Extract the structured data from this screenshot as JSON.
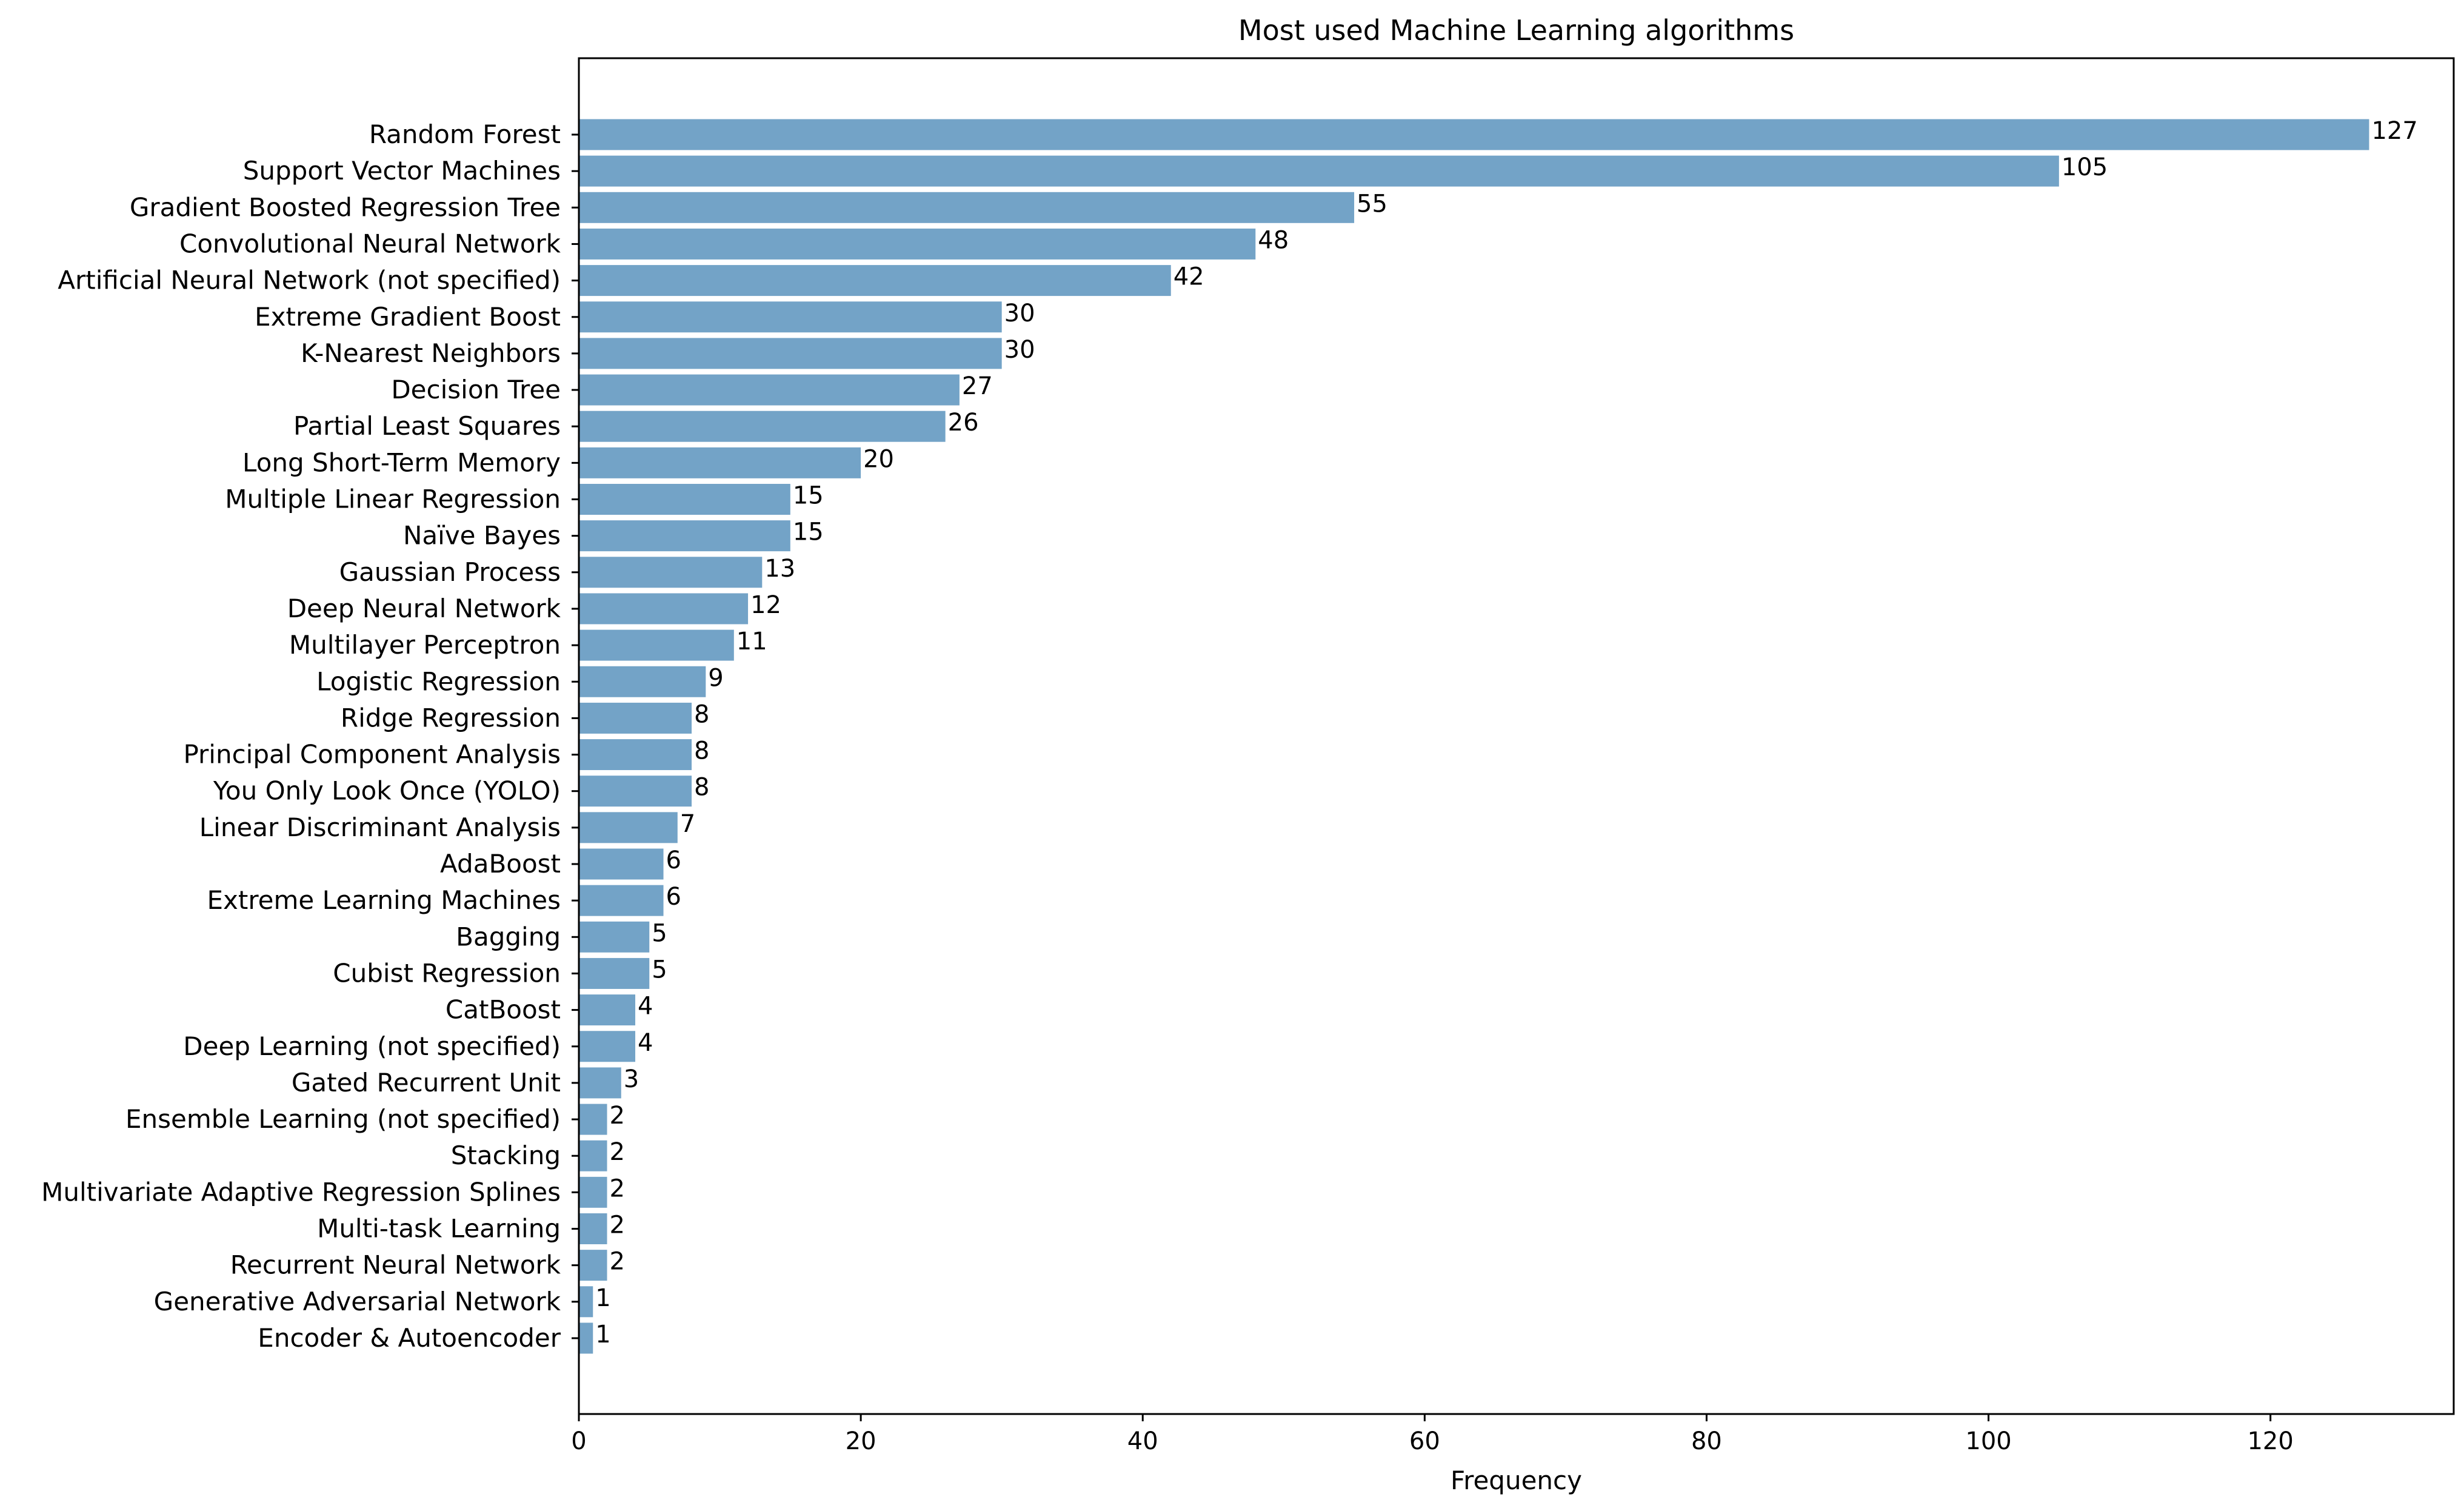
{
  "chart_data": {
    "type": "bar",
    "orientation": "horizontal",
    "title": "Most used Machine Learning algorithms",
    "xlabel": "Frequency",
    "ylabel": "",
    "xlim": [
      0,
      133
    ],
    "xticks": [
      0,
      20,
      40,
      60,
      80,
      100,
      120
    ],
    "grid": false,
    "bar_color": "#73a3c7",
    "categories": [
      "Random Forest",
      "Support Vector Machines",
      "Gradient Boosted Regression Tree",
      "Convolutional Neural Network",
      "Artificial Neural Network (not specified)",
      "Extreme Gradient Boost",
      "K-Nearest Neighbors",
      "Decision Tree",
      "Partial Least Squares",
      "Long Short-Term Memory",
      "Multiple Linear Regression",
      "Naïve Bayes",
      "Gaussian Process",
      "Deep Neural Network",
      "Multilayer Perceptron",
      "Logistic Regression",
      "Ridge Regression",
      "Principal Component Analysis",
      "You Only Look Once (YOLO)",
      "Linear Discriminant Analysis",
      "AdaBoost",
      "Extreme Learning Machines",
      "Bagging",
      "Cubist Regression",
      "CatBoost",
      "Deep Learning (not specified)",
      "Gated Recurrent Unit",
      "Ensemble Learning (not specified)",
      "Stacking",
      "Multivariate Adaptive Regression Splines",
      "Multi-task Learning",
      "Recurrent Neural Network",
      "Generative Adversarial Network",
      "Encoder & Autoencoder"
    ],
    "values": [
      127,
      105,
      55,
      48,
      42,
      30,
      30,
      27,
      26,
      20,
      15,
      15,
      13,
      12,
      11,
      9,
      8,
      8,
      8,
      7,
      6,
      6,
      5,
      5,
      4,
      4,
      3,
      2,
      2,
      2,
      2,
      2,
      1,
      1
    ]
  }
}
